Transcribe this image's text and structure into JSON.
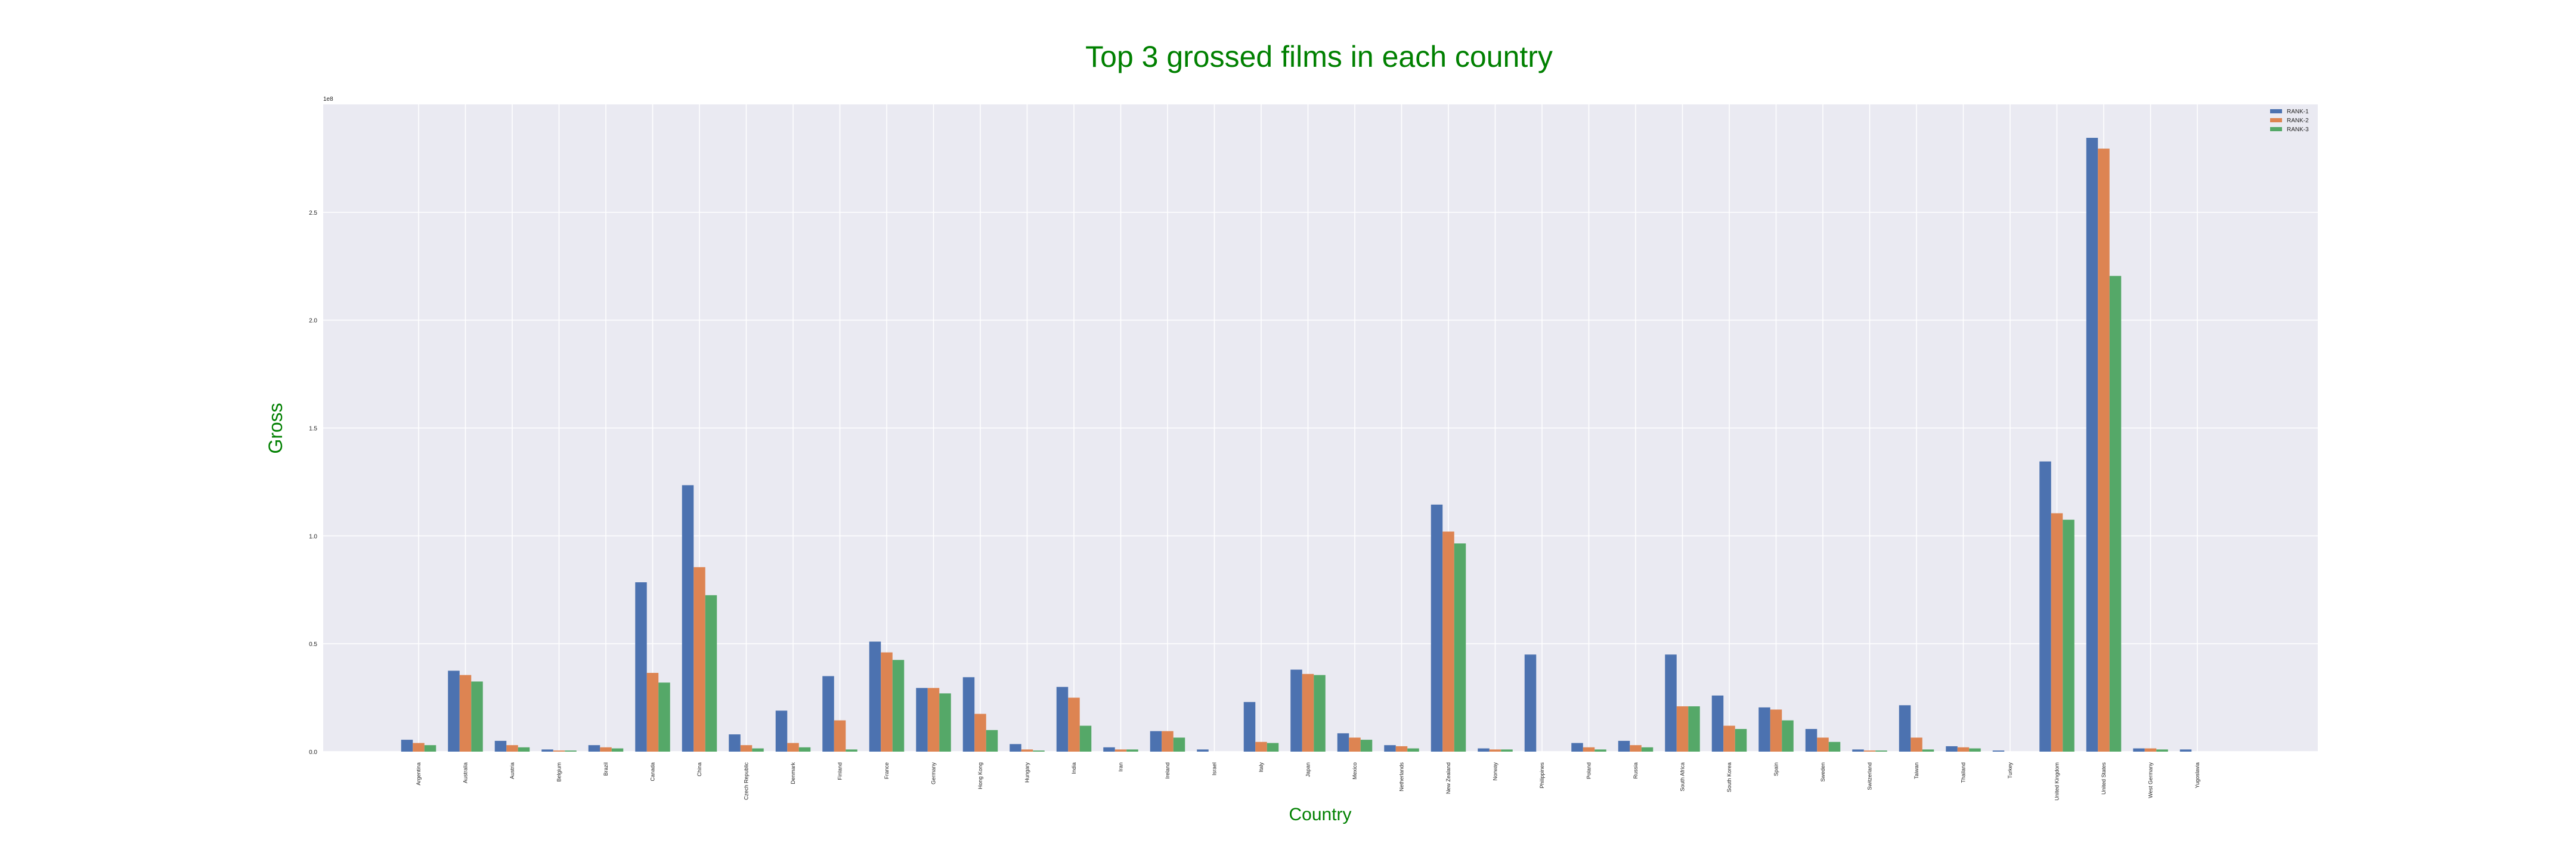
{
  "colors": {
    "title": "#008000",
    "plot_bg": "#eaeaf2",
    "grid": "#ffffff",
    "rank1": "#4c72b0",
    "rank2": "#dd8452",
    "rank3": "#55a868"
  },
  "chart_data": {
    "type": "bar",
    "title": "Top 3 grossed films in each country",
    "xlabel": "Country",
    "ylabel": "Gross",
    "y_offset_label": "1e8",
    "ylim": [
      0,
      3.0
    ],
    "yticks": [
      "0.0",
      "0.5",
      "1.0",
      "1.5",
      "2.0",
      "2.5"
    ],
    "grid": true,
    "legend_position": "top-right",
    "categories": [
      "Argentina",
      "Australia",
      "Austria",
      "Belgium",
      "Brazil",
      "Canada",
      "China",
      "Czech Republic",
      "Denmark",
      "Finland",
      "France",
      "Germany",
      "Hong Kong",
      "Hungary",
      "India",
      "Iran",
      "Ireland",
      "Israel",
      "Italy",
      "Japan",
      "Mexico",
      "Netherlands",
      "New Zealand",
      "Norway",
      "Philippines",
      "Poland",
      "Russia",
      "South Africa",
      "South Korea",
      "Spain",
      "Sweden",
      "Switzerland",
      "Taiwan",
      "Thailand",
      "Turkey",
      "United Kingdom",
      "United States",
      "West Germany",
      "Yugoslavia"
    ],
    "series": [
      {
        "name": "RANK-1",
        "values": [
          0.055,
          0.375,
          0.05,
          0.01,
          0.03,
          0.785,
          1.235,
          0.08,
          0.19,
          0.35,
          0.51,
          0.295,
          0.345,
          0.035,
          0.3,
          0.02,
          0.095,
          0.01,
          0.23,
          0.38,
          0.085,
          0.03,
          1.145,
          0.015,
          0.45,
          0.04,
          0.05,
          0.45,
          0.26,
          0.205,
          0.105,
          0.01,
          0.215,
          0.025,
          0.005,
          1.345,
          2.845,
          0.015,
          0.01
        ]
      },
      {
        "name": "RANK-2",
        "values": [
          0.04,
          0.355,
          0.03,
          0.005,
          0.02,
          0.365,
          0.855,
          0.03,
          0.04,
          0.145,
          0.46,
          0.295,
          0.175,
          0.01,
          0.25,
          0.01,
          0.095,
          0,
          0.045,
          0.36,
          0.065,
          0.025,
          1.02,
          0.01,
          0,
          0.02,
          0.03,
          0.21,
          0.12,
          0.195,
          0.065,
          0.005,
          0.065,
          0.02,
          0,
          1.105,
          2.795,
          0.015,
          0
        ]
      },
      {
        "name": "RANK-3",
        "values": [
          0.03,
          0.325,
          0.02,
          0.005,
          0.015,
          0.32,
          0.725,
          0.015,
          0.02,
          0.01,
          0.425,
          0.27,
          0.1,
          0.005,
          0.12,
          0.01,
          0.065,
          0,
          0.04,
          0.355,
          0.055,
          0.015,
          0.965,
          0.01,
          0,
          0.01,
          0.02,
          0.21,
          0.105,
          0.145,
          0.045,
          0.005,
          0.01,
          0.015,
          0,
          1.075,
          2.205,
          0.01,
          0
        ]
      }
    ]
  }
}
